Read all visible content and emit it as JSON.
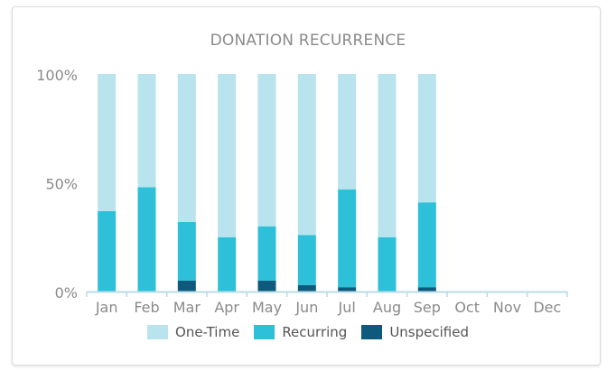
{
  "chart_data": {
    "type": "bar",
    "stacked": true,
    "title": "DONATION RECURRENCE",
    "categories": [
      "Jan",
      "Feb",
      "Mar",
      "Apr",
      "May",
      "Jun",
      "Jul",
      "Aug",
      "Sep",
      "Oct",
      "Nov",
      "Dec"
    ],
    "y_ticks": [
      "0%",
      "50%",
      "100%"
    ],
    "ylim": [
      0,
      100
    ],
    "series": [
      {
        "name": "Unspecified",
        "color": "#0e5a7c",
        "values": [
          0,
          0,
          5,
          0,
          5,
          3,
          2,
          0,
          2,
          null,
          null,
          null
        ]
      },
      {
        "name": "Recurring",
        "color": "#2ebfd9",
        "values": [
          37,
          48,
          27,
          25,
          25,
          23,
          45,
          25,
          39,
          null,
          null,
          null
        ]
      },
      {
        "name": "One-Time",
        "color": "#b9e3ed",
        "values": [
          63,
          52,
          68,
          75,
          70,
          74,
          53,
          75,
          59,
          null,
          null,
          null
        ]
      }
    ],
    "legend": [
      "One-Time",
      "Recurring",
      "Unspecified"
    ],
    "legend_position": "bottom",
    "grid": false
  }
}
